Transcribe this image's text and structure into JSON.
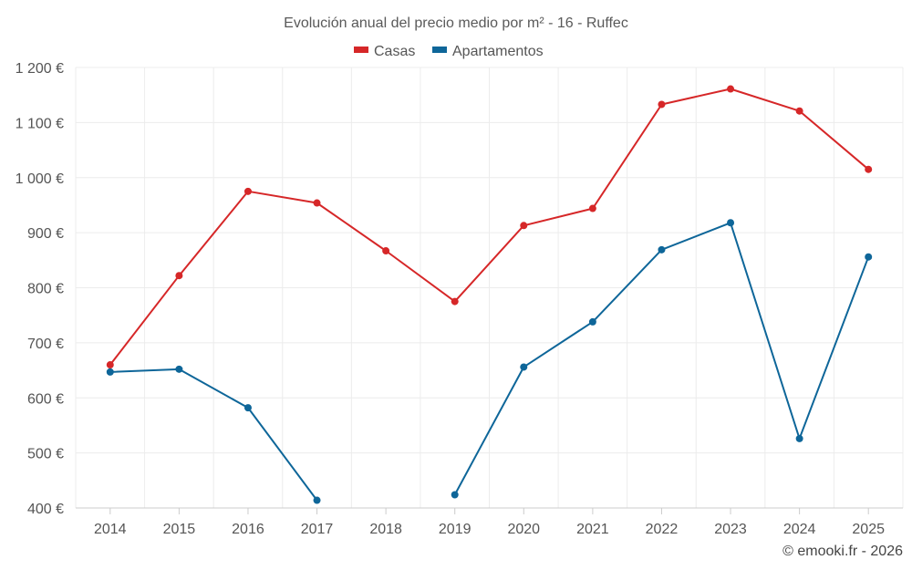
{
  "chart_data": {
    "type": "line",
    "title": "Evolución anual del precio medio por m² - 16 - Ruffec",
    "categories": [
      "2014",
      "2015",
      "2016",
      "2017",
      "2018",
      "2019",
      "2020",
      "2021",
      "2022",
      "2023",
      "2024",
      "2025"
    ],
    "series": [
      {
        "name": "Casas",
        "color": "#d62728",
        "values": [
          660,
          822,
          975,
          954,
          867,
          775,
          913,
          944,
          1133,
          1161,
          1121,
          1015
        ]
      },
      {
        "name": "Apartamentos",
        "color": "#0e6699",
        "values": [
          647,
          652,
          582,
          414,
          null,
          424,
          656,
          738,
          869,
          918,
          526,
          856
        ]
      }
    ],
    "y_ticks": [
      400,
      500,
      600,
      700,
      800,
      900,
      1000,
      1100,
      1200
    ],
    "y_tick_labels": [
      "400 €",
      "500 €",
      "600 €",
      "700 €",
      "800 €",
      "900 €",
      "1 000 €",
      "1 100 €",
      "1 200 €"
    ],
    "ylim": [
      400,
      1200
    ],
    "xlabel": "",
    "ylabel": "",
    "grid": true,
    "legend_position": "top-center",
    "credit": "© emooki.fr - 2026"
  }
}
